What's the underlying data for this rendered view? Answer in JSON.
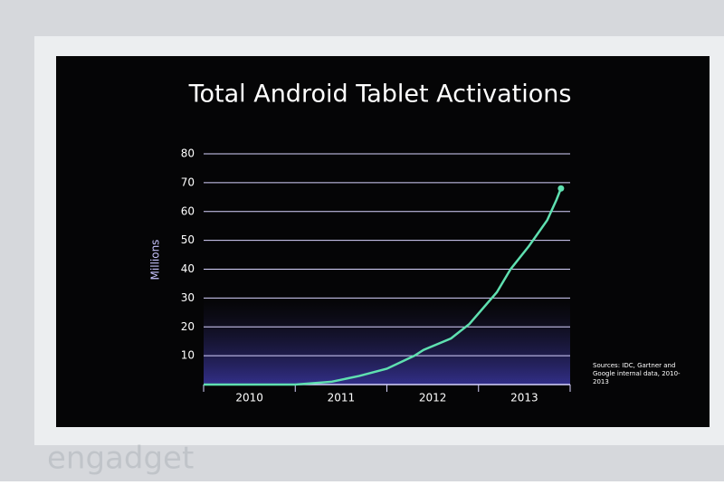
{
  "chart_data": {
    "type": "line",
    "title": "Total Android Tablet Activations",
    "ylabel": "Millions",
    "x": [
      2010,
      2011,
      2011.4,
      2011.7,
      2012,
      2012.3,
      2012.4,
      2012.7,
      2012.9,
      2013.2,
      2013.35,
      2013.55,
      2013.75,
      2013.85,
      2013.9
    ],
    "series": [
      {
        "color": "#5fe0b0",
        "values": [
          0,
          0,
          1,
          3,
          5.5,
          10,
          12,
          16,
          21,
          32,
          40,
          48,
          57,
          64,
          68
        ]
      }
    ],
    "xlim": [
      2010,
      2014
    ],
    "xticks": [
      2010,
      2011,
      2012,
      2013
    ],
    "ylim": [
      0,
      80
    ],
    "yticks": [
      10,
      20,
      30,
      40,
      50,
      60,
      70,
      80
    ],
    "grid": true,
    "note": "Sources: IDC, Gartner and Google internal data, 2010-2013"
  },
  "watermark": "engadget"
}
